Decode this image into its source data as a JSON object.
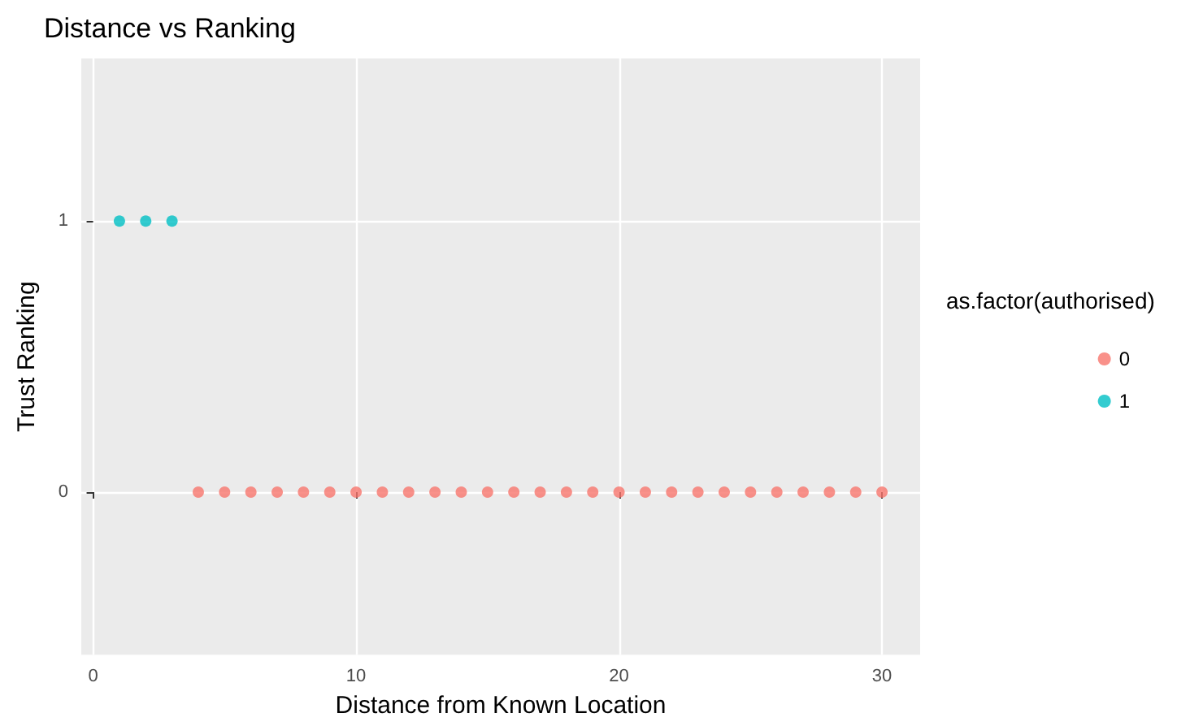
{
  "chart_data": {
    "type": "scatter",
    "title": "Distance vs Ranking",
    "xlabel": "Distance from Known Location",
    "ylabel": "Trust Ranking",
    "legend_title": "as.factor(authorised)",
    "series": [
      {
        "name": "0",
        "color": "#f8766d",
        "x": [
          4,
          5,
          6,
          7,
          8,
          9,
          10,
          11,
          12,
          13,
          14,
          15,
          16,
          17,
          18,
          19,
          20,
          21,
          22,
          23,
          24,
          25,
          26,
          27,
          28,
          29,
          30
        ],
        "values": [
          0,
          0,
          0,
          0,
          0,
          0,
          0,
          0,
          0,
          0,
          0,
          0,
          0,
          0,
          0,
          0,
          0,
          0,
          0,
          0,
          0,
          0,
          0,
          0,
          0,
          0,
          0
        ]
      },
      {
        "name": "1",
        "color": "#00bfc4",
        "x": [
          1,
          2,
          3
        ],
        "values": [
          1,
          1,
          1
        ]
      }
    ],
    "xlim": [
      -0.45,
      31.45
    ],
    "xticks": [
      0,
      10,
      20,
      30
    ],
    "ylim": [
      -0.6,
      1.6
    ],
    "yticks": [
      0,
      1
    ],
    "grid": true,
    "legend": "right",
    "marker": "circle"
  }
}
